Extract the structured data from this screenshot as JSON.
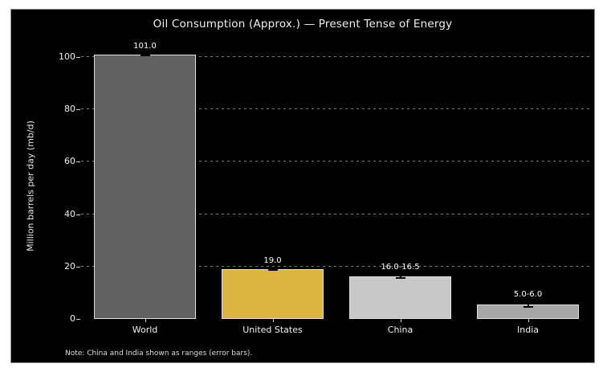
{
  "chart_data": {
    "type": "bar",
    "title": "Oil Consumption (Approx.) — Present Tense of Energy",
    "ylabel": "Million barrels per day (mb/d)",
    "xlabel": "",
    "categories": [
      "World",
      "United States",
      "China",
      "India"
    ],
    "values": [
      101.0,
      19.0,
      16.25,
      5.5
    ],
    "value_labels": [
      "101.0",
      "19.0",
      "16.0-16.5",
      "5.0-6.0"
    ],
    "errors": [
      0,
      0,
      0.25,
      0.5
    ],
    "bar_colors": [
      "#616161",
      "#ddb440",
      "#c8c8c8",
      "#a6a6a6"
    ],
    "bar_edge_color": "#dfdfdf",
    "error_color": "#000000",
    "ylim": [
      0,
      104.6
    ],
    "yticks": [
      0,
      20,
      40,
      60,
      80,
      100
    ],
    "grid": true,
    "grid_style": "dashed",
    "grid_color": "#8f8f8f",
    "legend": null,
    "background_color": "#000000",
    "text_color": "#f0f0f0",
    "note": "Note: China and India shown as ranges (error bars)."
  }
}
